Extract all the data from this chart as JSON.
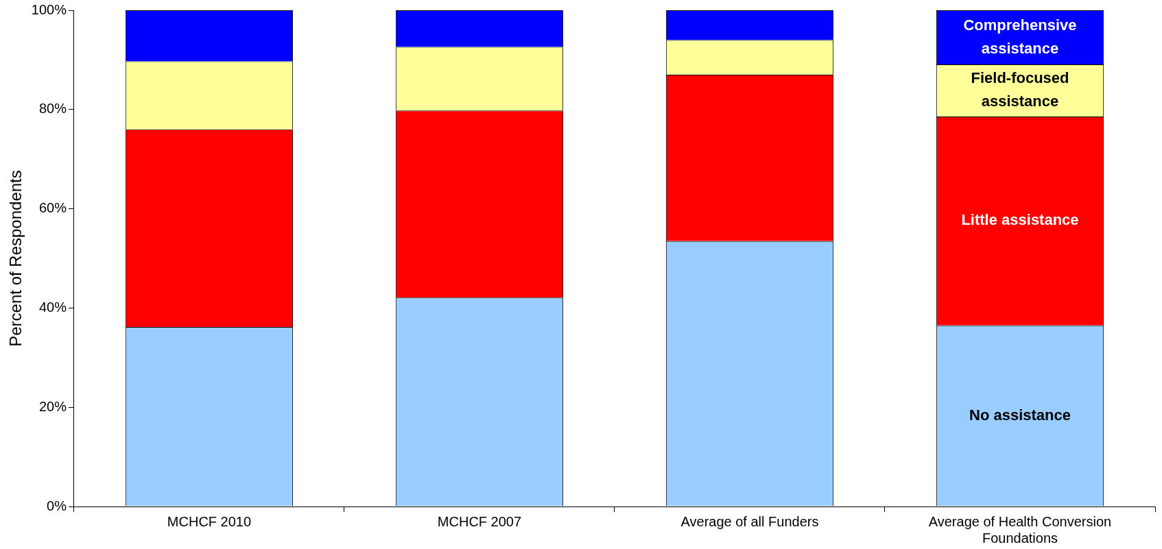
{
  "chart_data": {
    "type": "bar",
    "stacked": true,
    "ylabel": "Percent of Respondents",
    "categories": [
      "MCHCF 2010",
      "MCHCF 2007",
      "Average of all Funders",
      "Average of Health Conversion Foundations"
    ],
    "series": [
      {
        "name": "No assistance",
        "color": "#99ccff",
        "values": [
          36.2,
          42.1,
          53.5,
          36.5
        ]
      },
      {
        "name": "Little assistance",
        "color": "#ff0000",
        "values": [
          39.8,
          37.7,
          33.5,
          42.1
        ]
      },
      {
        "name": "Field-focused assistance",
        "color": "#ffff99",
        "values": [
          13.7,
          12.8,
          7.0,
          10.5
        ]
      },
      {
        "name": "Comprehensive assistance",
        "color": "#0000ff",
        "values": [
          10.3,
          7.4,
          6.0,
          10.9
        ]
      }
    ],
    "ylim": [
      0,
      100
    ],
    "yticks": [
      {
        "value": 0,
        "label": "0%"
      },
      {
        "value": 20,
        "label": "20%"
      },
      {
        "value": 40,
        "label": "40%"
      },
      {
        "value": 60,
        "label": "60%"
      },
      {
        "value": 80,
        "label": "80%"
      },
      {
        "value": 100,
        "label": "100%"
      }
    ],
    "grid": false,
    "legend": false
  }
}
